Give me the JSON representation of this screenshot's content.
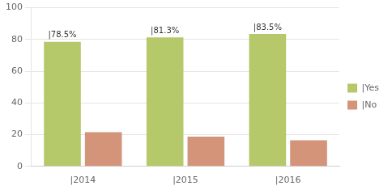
{
  "chart_data": {
    "type": "bar",
    "categories": [
      "|2014",
      "|2015",
      "|2016"
    ],
    "series": [
      {
        "name": "|Yes",
        "color": "#b5c96a",
        "values": [
          78.5,
          81.3,
          83.5
        ],
        "value_labels": [
          "|78.5%",
          "|81.3%",
          "|83.5%"
        ]
      },
      {
        "name": "|No",
        "color": "#d4947a",
        "values": [
          21.5,
          18.7,
          16.5
        ]
      }
    ],
    "ylim": [
      0,
      100
    ],
    "yticks": [
      0,
      20,
      40,
      60,
      80,
      100
    ],
    "grid": true,
    "legend": "right",
    "data_labels": true
  }
}
